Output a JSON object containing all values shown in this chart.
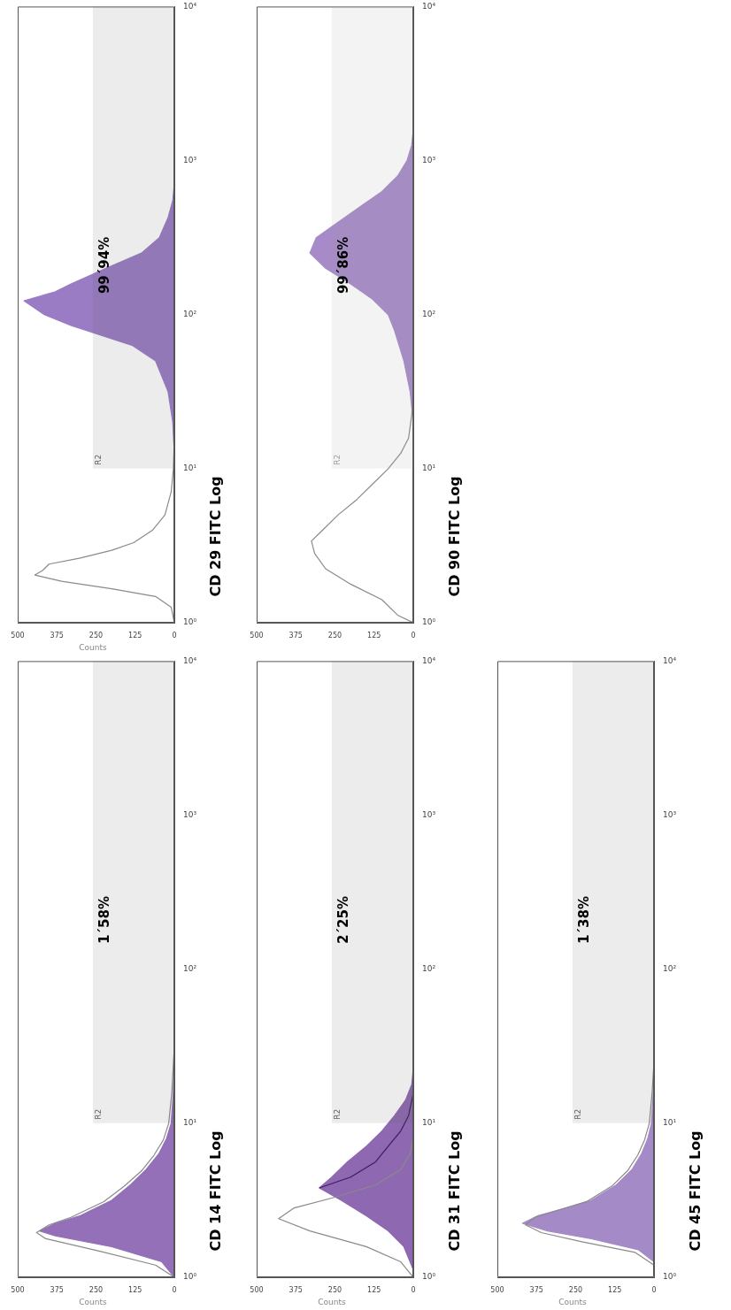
{
  "chart_data": [
    {
      "type": "area",
      "orientation": "horizontal",
      "xlabel": "Counts",
      "ylabel": "CD 29 FITC Log",
      "log": "y",
      "xlim": [
        500,
        0
      ],
      "ylim": [
        1,
        10000
      ],
      "yticks": [
        {
          "value": 1,
          "label": "10⁰"
        },
        {
          "value": 10,
          "label": "10¹"
        },
        {
          "value": 100,
          "label": "10²"
        },
        {
          "value": 1000,
          "label": "10³"
        },
        {
          "value": 10000,
          "label": "10⁴"
        }
      ],
      "xticks": [
        500,
        375,
        250,
        125,
        0
      ],
      "annotations": [
        "99´94%"
      ],
      "bands": [
        {
          "axis": "y",
          "from": 10,
          "to": 10000,
          "label": "R2",
          "color": "#606060"
        }
      ],
      "series": [
        {
          "type": "line",
          "color": "#8a8a8a",
          "x": [
            1,
            1.26,
            1.48,
            1.66,
            1.86,
            2.04,
            2.19,
            2.4,
            2.63,
            2.95,
            3.31,
            3.98,
            5.01,
            7.08,
            10,
            15.8
          ],
          "values": [
            0,
            10,
            60,
            200,
            360,
            445,
            420,
            400,
            300,
            200,
            130,
            70,
            30,
            10,
            3,
            0
          ]
        },
        {
          "color": "#9a7cc4",
          "x": [
            12.6,
            20,
            31.6,
            50,
            63,
            85,
            100,
            123,
            141,
            158,
            200,
            251,
            316,
            427,
            550,
            708
          ],
          "values": [
            0,
            5,
            20,
            60,
            133,
            330,
            415,
            480,
            380,
            330,
            218,
            105,
            48,
            20,
            5,
            0
          ]
        }
      ]
    },
    {
      "type": "area",
      "orientation": "horizontal",
      "ylabel": "CD 90 FITC Log",
      "log": "y",
      "xlim": [
        500,
        0
      ],
      "ylim": [
        1,
        10000
      ],
      "yticks": [
        {
          "value": 1,
          "label": "10⁰"
        },
        {
          "value": 10,
          "label": "10¹"
        },
        {
          "value": 100,
          "label": "10²"
        },
        {
          "value": 1000,
          "label": "10³"
        },
        {
          "value": 10000,
          "label": "10⁴"
        }
      ],
      "xticks": [
        500,
        375,
        250,
        125,
        0
      ],
      "annotations": [
        "99´86%"
      ],
      "bands": [
        {
          "axis": "y",
          "from": 10,
          "to": 10000,
          "label": "R2",
          "color": "#a0a0a0"
        }
      ],
      "series": [
        {
          "type": "line",
          "color": "#8a8a8a",
          "x": [
            1,
            1.12,
            1.41,
            1.78,
            2.24,
            2.82,
            3.39,
            3.98,
            5.01,
            6.31,
            7.94,
            10,
            12.6,
            15.8,
            22.4,
            31.6
          ],
          "values": [
            0,
            50,
            100,
            200,
            280,
            315,
            325,
            290,
            240,
            180,
            130,
            80,
            40,
            15,
            5,
            0
          ]
        },
        {
          "color": "#a78bc9",
          "x": [
            20,
            31.6,
            50,
            79,
            100,
            126,
            158,
            200,
            251,
            316,
            398,
            501,
            631,
            794,
            1000,
            1259,
            1585
          ],
          "values": [
            0,
            10,
            30,
            60,
            80,
            130,
            200,
            280,
            330,
            310,
            240,
            170,
            100,
            50,
            20,
            5,
            0
          ]
        }
      ]
    },
    {
      "type": "area",
      "orientation": "horizontal",
      "xlabel": "Counts",
      "ylabel": "CD 14 FITC Log",
      "log": "y",
      "xlim": [
        500,
        0
      ],
      "ylim": [
        1,
        10000
      ],
      "yticks": [
        {
          "value": 1,
          "label": "10⁰"
        },
        {
          "value": 10,
          "label": "10¹"
        },
        {
          "value": 100,
          "label": "10²"
        },
        {
          "value": 1000,
          "label": "10³"
        },
        {
          "value": 10000,
          "label": "10⁴"
        }
      ],
      "xticks": [
        500,
        375,
        250,
        125,
        0
      ],
      "annotations": [
        "1´58%"
      ],
      "bands": [
        {
          "axis": "y",
          "from": 10,
          "to": 10000,
          "label": "R2",
          "color": "#606060"
        }
      ],
      "series": [
        {
          "type": "line",
          "color": "#8a8a8a",
          "x": [
            1,
            1.2,
            1.48,
            1.78,
            1.95,
            2.19,
            2.45,
            3.1,
            3.9,
            4.9,
            6.2,
            7.8,
            10,
            15.8,
            31.6
          ],
          "values": [
            0,
            60,
            240,
            410,
            440,
            400,
            330,
            225,
            160,
            105,
            65,
            35,
            18,
            8,
            0
          ]
        },
        {
          "color": "#9370b8",
          "x": [
            1,
            1.26,
            1.58,
            1.86,
            2,
            2.24,
            2.51,
            3.16,
            3.98,
            5.01,
            6.31,
            7.94,
            10,
            15.8,
            31.6
          ],
          "values": [
            0,
            40,
            200,
            380,
            430,
            380,
            300,
            200,
            140,
            90,
            50,
            25,
            10,
            3,
            0
          ]
        }
      ]
    },
    {
      "type": "area",
      "orientation": "horizontal",
      "xlabel": "Counts",
      "ylabel": "CD 31 FITC Log",
      "log": "y",
      "xlim": [
        500,
        0
      ],
      "ylim": [
        1,
        10000
      ],
      "yticks": [
        {
          "value": 1,
          "label": "10⁰"
        },
        {
          "value": 10,
          "label": "10¹"
        },
        {
          "value": 100,
          "label": "10²"
        },
        {
          "value": 1000,
          "label": "10³"
        },
        {
          "value": 10000,
          "label": "10⁴"
        }
      ],
      "xticks": [
        500,
        375,
        250,
        125,
        0
      ],
      "annotations": [
        "2´25%"
      ],
      "bands": [
        {
          "axis": "y",
          "from": 10,
          "to": 10000,
          "label": "R2",
          "color": "#606060"
        }
      ],
      "series": [
        {
          "type": "line",
          "color": "#8a8a8a",
          "x": [
            1,
            1.26,
            1.58,
            2,
            2.4,
            2.82,
            3.31,
            3.98,
            5.01,
            6.31,
            7.94
          ],
          "values": [
            0,
            40,
            150,
            330,
            430,
            380,
            250,
            120,
            40,
            10,
            0
          ]
        },
        {
          "color": "#8e68b0",
          "x": [
            1.12,
            1.58,
            2,
            2.51,
            3.16,
            3.8,
            4.47,
            5.62,
            7.08,
            8.91,
            11.2,
            14.1,
            17.8,
            22.4
          ],
          "values": [
            0,
            30,
            80,
            150,
            230,
            300,
            260,
            210,
            150,
            100,
            60,
            25,
            5,
            0
          ]
        },
        {
          "type": "line",
          "color": "#3a1f5e",
          "x": [
            3.8,
            4.47,
            5.62,
            7.08,
            8.91,
            11.2,
            15.8
          ],
          "values": [
            300,
            200,
            120,
            80,
            40,
            15,
            0
          ]
        }
      ]
    },
    {
      "type": "area",
      "orientation": "horizontal",
      "xlabel": "Counts",
      "ylabel": "CD 45 FITC Log",
      "log": "y",
      "xlim": [
        500,
        0
      ],
      "ylim": [
        1,
        10000
      ],
      "yticks": [
        {
          "value": 1,
          "label": "10⁰"
        },
        {
          "value": 10,
          "label": "10¹"
        },
        {
          "value": 100,
          "label": "10²"
        },
        {
          "value": 1000,
          "label": "10³"
        },
        {
          "value": 10000,
          "label": "10⁴"
        }
      ],
      "xticks": [
        500,
        375,
        250,
        125,
        0
      ],
      "annotations": [
        "1´38%"
      ],
      "bands": [
        {
          "axis": "y",
          "from": 10,
          "to": 10000,
          "label": "R2",
          "color": "#606060"
        }
      ],
      "series": [
        {
          "type": "line",
          "color": "#8a8a8a",
          "x": [
            1.2,
            1.45,
            1.7,
            1.95,
            2.19,
            2.45,
            2.75,
            3.1,
            3.9,
            4.9,
            6.2,
            7.8,
            10,
            15.8,
            25.1
          ],
          "values": [
            0,
            60,
            230,
            360,
            410,
            380,
            300,
            215,
            135,
            85,
            52,
            30,
            15,
            6,
            0
          ]
        },
        {
          "color": "#a48ac6",
          "x": [
            1.26,
            1.51,
            1.78,
            2,
            2.24,
            2.51,
            2.82,
            3.16,
            3.98,
            5.01,
            6.31,
            7.94,
            10,
            15.8,
            25.1
          ],
          "values": [
            0,
            50,
            200,
            340,
            420,
            370,
            280,
            200,
            120,
            70,
            40,
            20,
            8,
            2,
            0
          ]
        }
      ]
    }
  ]
}
